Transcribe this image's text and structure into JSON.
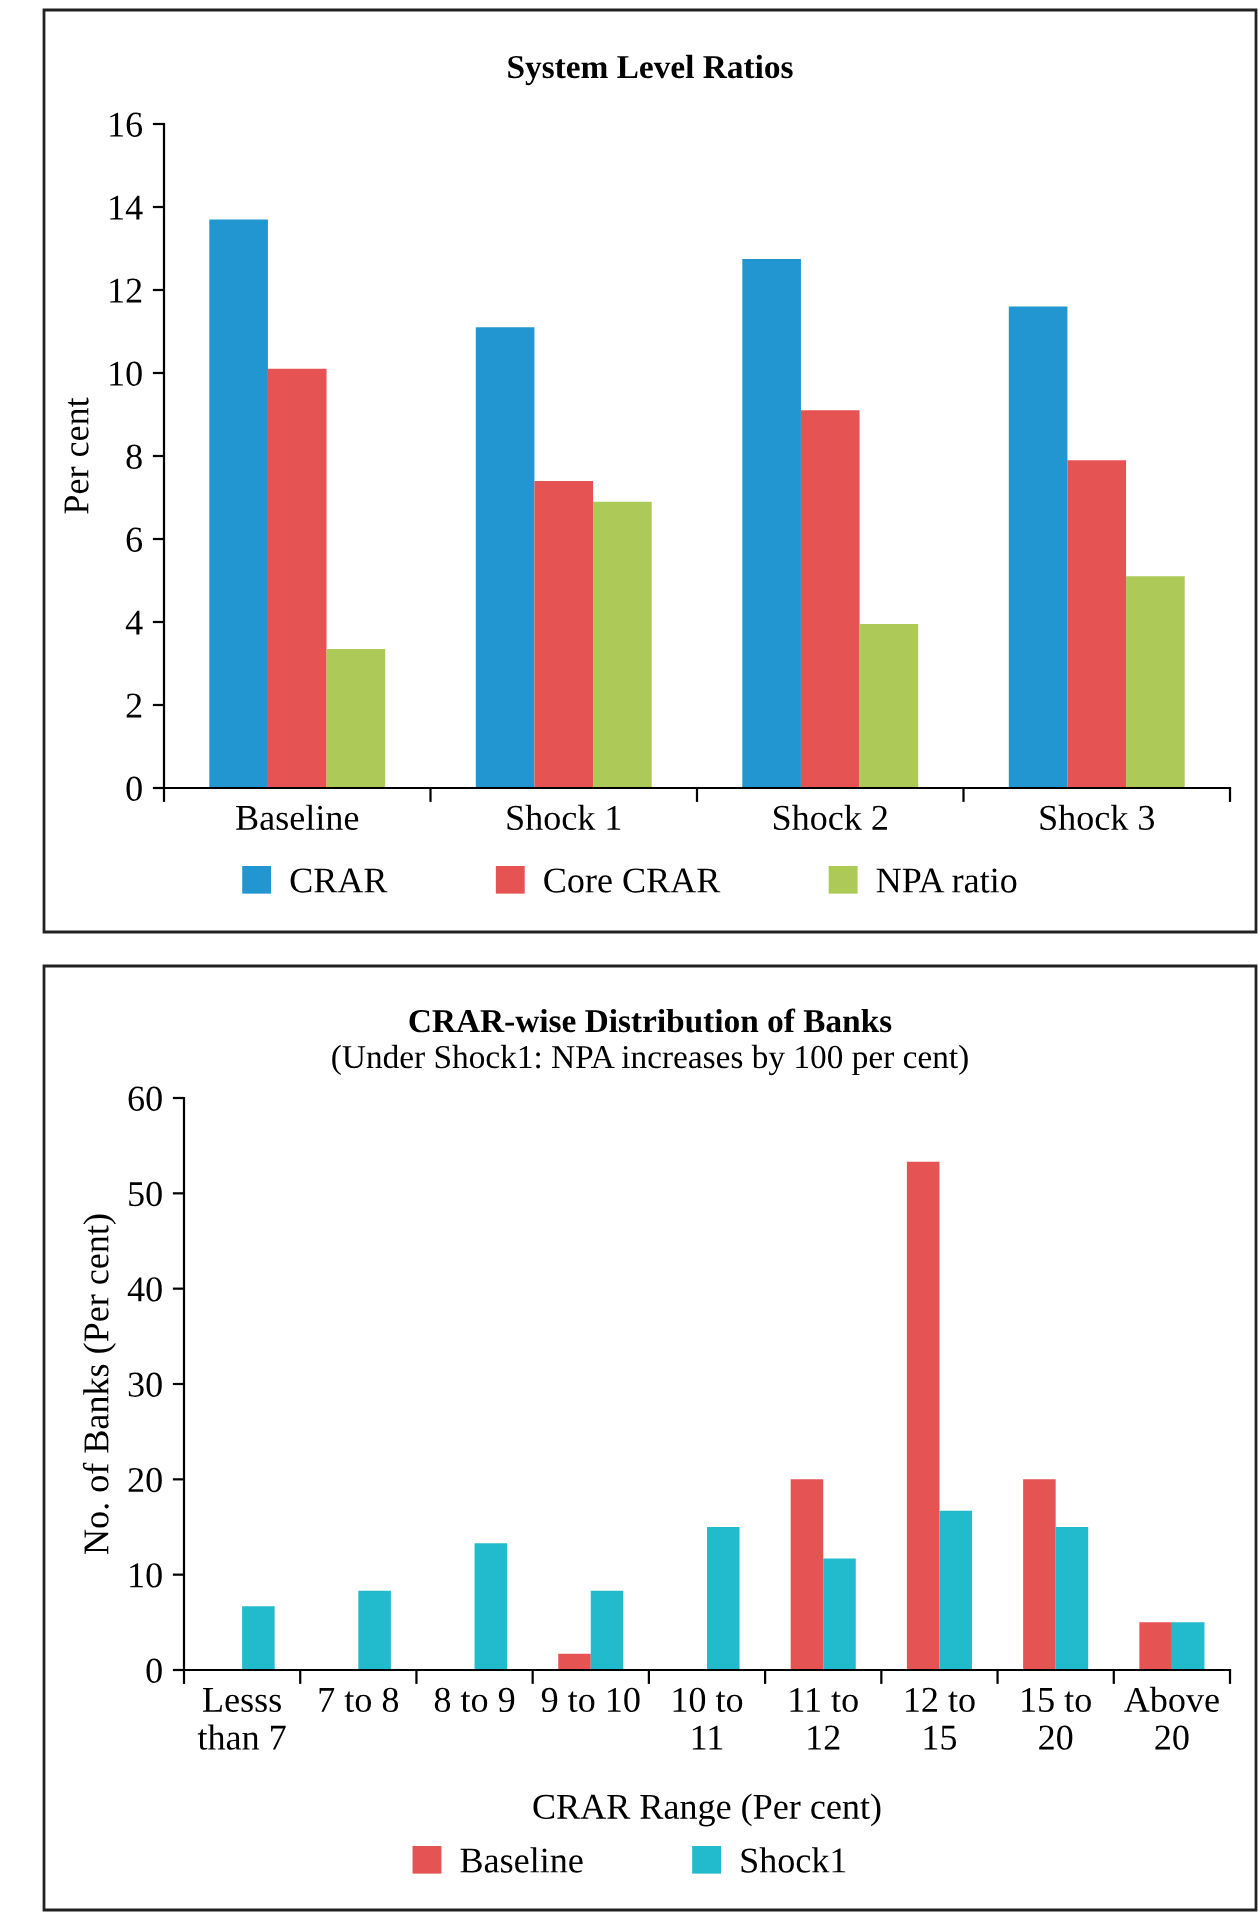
{
  "chart_data": [
    {
      "type": "bar",
      "title": "System Level Ratios",
      "ylabel": "Per cent",
      "categories": [
        "Baseline",
        "Shock 1",
        "Shock 2",
        "Shock 3"
      ],
      "series": [
        {
          "name": "CRAR",
          "color": "#2196d0",
          "values": [
            13.7,
            11.1,
            12.75,
            11.6
          ]
        },
        {
          "name": "Core CRAR",
          "color": "#e65353",
          "values": [
            10.1,
            7.4,
            9.1,
            7.9
          ]
        },
        {
          "name": "NPA ratio",
          "color": "#adc957",
          "values": [
            3.35,
            6.9,
            3.95,
            5.1
          ]
        }
      ],
      "ylim": [
        0,
        16
      ],
      "yticks": [
        0,
        2,
        4,
        6,
        8,
        10,
        12,
        14,
        16
      ],
      "grid": false,
      "legend": "bottom"
    },
    {
      "type": "bar",
      "title": "CRAR-wise Distribution of Banks",
      "subtitle": "(Under Shock1: NPA increases by 100 per cent)",
      "xlabel": "CRAR Range (Per cent)",
      "ylabel": "No. of Banks (Per cent)",
      "categories": [
        "Lesss\nthan 7",
        "7 to 8",
        "8 to 9",
        "9 to 10",
        "10 to\n11",
        "11 to\n12",
        "12 to\n15",
        "15 to\n20",
        "Above\n20"
      ],
      "series": [
        {
          "name": "Baseline",
          "color": "#e65353",
          "values": [
            0,
            0,
            0,
            1.7,
            0,
            20,
            53.3,
            20,
            5
          ]
        },
        {
          "name": "Shock1",
          "color": "#22bacd",
          "values": [
            6.7,
            8.3,
            13.3,
            8.3,
            15,
            11.7,
            16.7,
            15,
            5
          ]
        }
      ],
      "ylim": [
        0,
        60
      ],
      "yticks": [
        0,
        10,
        20,
        30,
        40,
        50,
        60
      ],
      "grid": false,
      "legend": "bottom"
    }
  ]
}
